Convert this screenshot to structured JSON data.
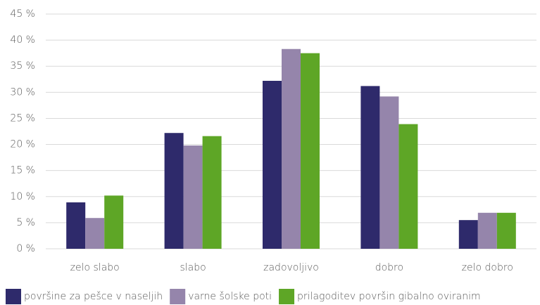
{
  "chart_data": {
    "type": "bar",
    "categories": [
      "zelo slabo",
      "slabo",
      "zadovoljivo",
      "dobro",
      "zelo dobro"
    ],
    "series": [
      {
        "name": "površine za pešce v naseljih",
        "color": "#2e2a6b",
        "values": [
          8.9,
          22.2,
          32.2,
          31.2,
          5.5
        ]
      },
      {
        "name": "varne šolske poti",
        "color": "#9585ab",
        "values": [
          5.9,
          19.8,
          38.3,
          29.2,
          6.9
        ]
      },
      {
        "name": "prilagoditev površin gibalno oviranim",
        "color": "#5ea626",
        "values": [
          10.2,
          21.6,
          37.5,
          23.9,
          6.9
        ]
      }
    ],
    "ylim": [
      0,
      45
    ],
    "yticks": [
      {
        "value": 0,
        "label": "0 %"
      },
      {
        "value": 5,
        "label": "5 %"
      },
      {
        "value": 10,
        "label": "10 %"
      },
      {
        "value": 15,
        "label": "15 %"
      },
      {
        "value": 20,
        "label": "20 %"
      },
      {
        "value": 25,
        "label": "25 %"
      },
      {
        "value": 30,
        "label": "30 %"
      },
      {
        "value": 35,
        "label": "35 %"
      },
      {
        "value": 40,
        "label": "40 %"
      },
      {
        "value": 45,
        "label": "45 %"
      }
    ],
    "grid": true,
    "legend": "bottom"
  }
}
